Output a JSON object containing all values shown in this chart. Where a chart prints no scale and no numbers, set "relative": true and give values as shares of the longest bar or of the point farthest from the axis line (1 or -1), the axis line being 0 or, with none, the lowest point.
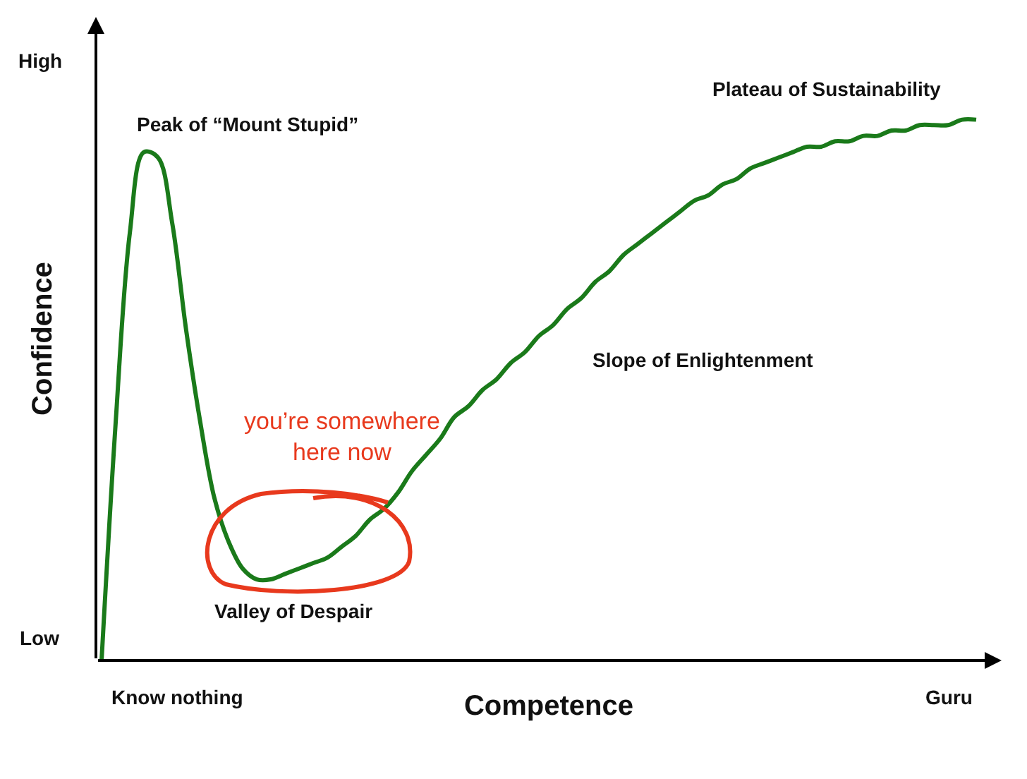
{
  "chart_data": {
    "type": "line",
    "relative": true,
    "xlabel": "Competence",
    "ylabel": "Confidence",
    "color": "#1a7a1a",
    "marker": "none",
    "categories": [
      null,
      null,
      null,
      null,
      null,
      null,
      null,
      null,
      null,
      null,
      null,
      null,
      null,
      null,
      null,
      null,
      null,
      null,
      null,
      null,
      null,
      null,
      null,
      null,
      null,
      null,
      null,
      null,
      null,
      null,
      null,
      null,
      null,
      null,
      null,
      null,
      null,
      null,
      null,
      null,
      null,
      null,
      null,
      null,
      null,
      null,
      null,
      null,
      null,
      null,
      null,
      null,
      null,
      null,
      null,
      null,
      null,
      null,
      null,
      null,
      null,
      null,
      null
    ],
    "values": [
      0,
      0.44,
      0.79,
      0.94,
      0.93,
      0.81,
      0.61,
      0.44,
      0.3,
      0.22,
      0.17,
      0.15,
      0.15,
      0.16,
      0.17,
      0.18,
      0.19,
      0.21,
      0.23,
      0.26,
      0.28,
      0.31,
      0.35,
      0.38,
      0.41,
      0.45,
      0.47,
      0.5,
      0.52,
      0.55,
      0.57,
      0.6,
      0.62,
      0.65,
      0.67,
      0.7,
      0.72,
      0.75,
      0.77,
      0.79,
      0.81,
      0.83,
      0.85,
      0.86,
      0.88,
      0.89,
      0.91,
      0.92,
      0.93,
      0.94,
      0.95,
      0.95,
      0.96,
      0.96,
      0.97,
      0.97,
      0.98,
      0.98,
      0.99,
      0.99,
      0.99,
      1.0,
      1
    ],
    "annotations": [
      "High",
      "Low",
      "Know nothing",
      "Guru",
      "Peak of “Mount Stupid”",
      "Valley of Despair",
      "Slope of Enlightenment",
      "Plateau of Sustainability",
      "you’re somewhere\nhere now"
    ]
  }
}
